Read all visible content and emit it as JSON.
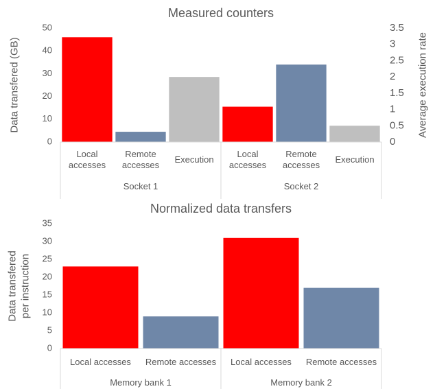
{
  "chart_data": [
    {
      "type": "bar",
      "title": "Measured counters",
      "y_label": "Data transfered (GB)",
      "y2_label": "Average execution rate",
      "categories": [
        "Socket 1",
        "Socket 2"
      ],
      "series": [
        {
          "name": "Local accesses",
          "color": "#ff0000",
          "values": [
            46,
            15.5
          ]
        },
        {
          "name": "Remote accesses",
          "color": "#6f87a8",
          "values": [
            4.5,
            34
          ]
        },
        {
          "name": "Execution",
          "color": "#bfbfbf",
          "axis": "y2",
          "values": [
            2.0,
            0.5
          ]
        }
      ],
      "ylim": [
        0,
        50
      ],
      "yticks": [
        0,
        10,
        20,
        30,
        40,
        50
      ],
      "y2lim": [
        0,
        3.5
      ],
      "y2ticks": [
        0,
        0.5,
        1,
        1.5,
        2,
        2.5,
        3,
        3.5
      ]
    },
    {
      "type": "bar",
      "title": "Normalized data transfers",
      "y_label": "Data transfered per instruction",
      "categories": [
        "Memory bank 1",
        "Memory bank 2"
      ],
      "series": [
        {
          "name": "Local accesses",
          "color": "#ff0000",
          "values": [
            23,
            31
          ]
        },
        {
          "name": "Remote accesses",
          "color": "#6f87a8",
          "values": [
            9,
            17
          ]
        }
      ],
      "ylim": [
        0,
        35
      ],
      "yticks": [
        0,
        5,
        10,
        15,
        20,
        25,
        30,
        35
      ]
    }
  ]
}
